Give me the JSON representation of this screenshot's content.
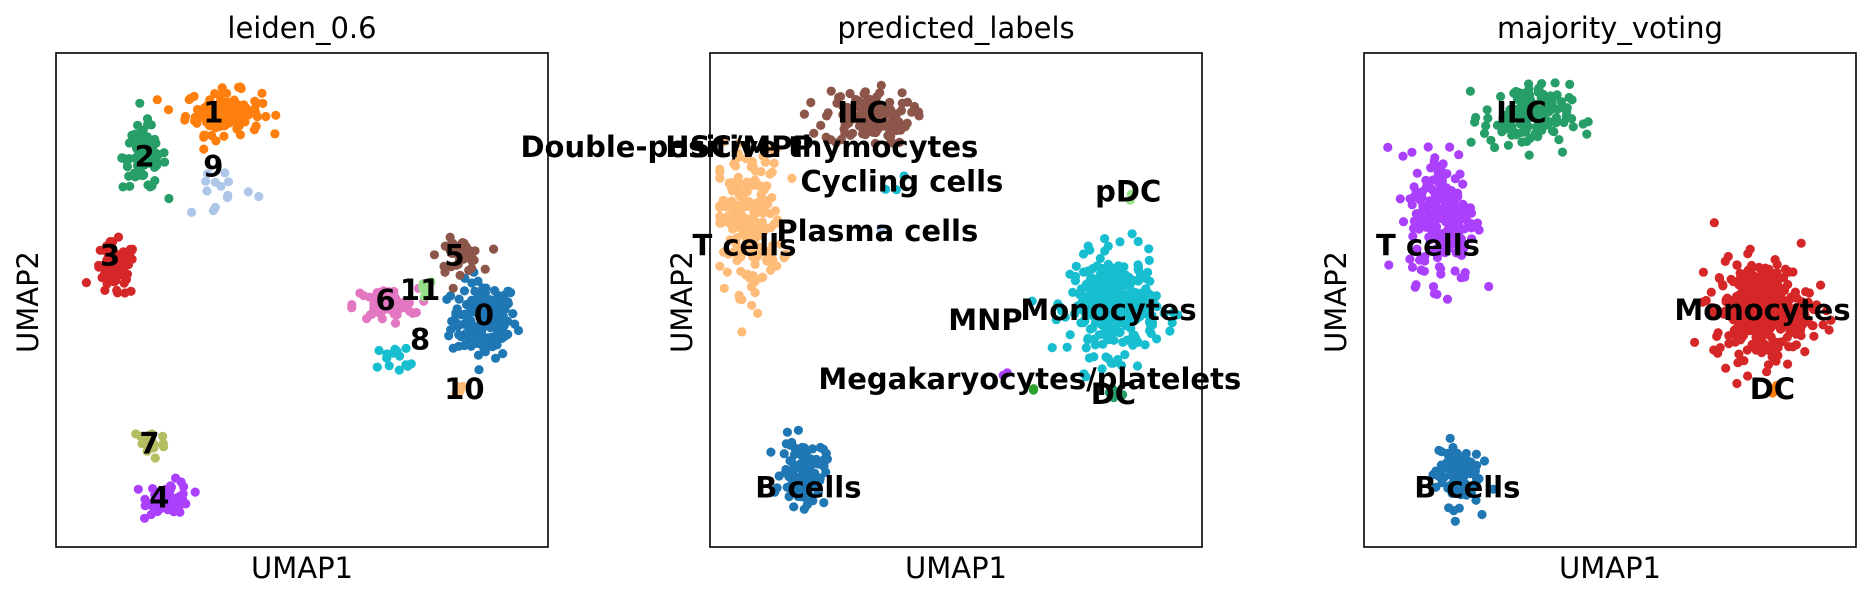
{
  "chart_data": [
    {
      "type": "scatter",
      "title": "leiden_0.6",
      "xlabel": "UMAP1",
      "ylabel": "UMAP2",
      "xlim": [
        0,
        100
      ],
      "ylim": [
        0,
        100
      ],
      "grid": false,
      "legend": "on data",
      "clusters": [
        {
          "label": "0",
          "color": "#1f77b4",
          "label_at": [
            87,
            47
          ],
          "n": 170,
          "spread": [
            6,
            7
          ],
          "center": [
            87,
            46
          ]
        },
        {
          "label": "1",
          "color": "#ff7f0e",
          "label_at": [
            32,
            88
          ],
          "n": 120,
          "spread": [
            7,
            4
          ],
          "center": [
            34,
            88
          ]
        },
        {
          "label": "2",
          "color": "#279e68",
          "label_at": [
            18,
            79
          ],
          "n": 80,
          "spread": [
            4,
            6
          ],
          "center": [
            18,
            79
          ]
        },
        {
          "label": "3",
          "color": "#d62728",
          "label_at": [
            11,
            59
          ],
          "n": 70,
          "spread": [
            4,
            5
          ],
          "center": [
            12,
            56
          ]
        },
        {
          "label": "4",
          "color": "#aa40fc",
          "label_at": [
            21,
            10
          ],
          "n": 60,
          "spread": [
            4,
            3
          ],
          "center": [
            23,
            10
          ]
        },
        {
          "label": "5",
          "color": "#8c564b",
          "label_at": [
            81,
            59
          ],
          "n": 45,
          "spread": [
            4,
            3
          ],
          "center": [
            82,
            59
          ]
        },
        {
          "label": "6",
          "color": "#e377c2",
          "label_at": [
            67,
            50
          ],
          "n": 55,
          "spread": [
            6,
            3
          ],
          "center": [
            67,
            49
          ]
        },
        {
          "label": "7",
          "color": "#b5bd61",
          "label_at": [
            19,
            21
          ],
          "n": 25,
          "spread": [
            3,
            3
          ],
          "center": [
            19,
            21
          ]
        },
        {
          "label": "8",
          "color": "#17becf",
          "label_at": [
            74,
            42
          ],
          "n": 14,
          "spread": [
            5,
            3
          ],
          "center": [
            70,
            38
          ]
        },
        {
          "label": "9",
          "color": "#aec7e8",
          "label_at": [
            32,
            77
          ],
          "n": 14,
          "spread": [
            7,
            6
          ],
          "center": [
            33,
            73
          ]
        },
        {
          "label": "10",
          "color": "#ffbb78",
          "label_at": [
            83,
            32
          ],
          "n": 4,
          "spread": [
            1,
            1
          ],
          "center": [
            82,
            32
          ]
        },
        {
          "label": "11",
          "color": "#98df8a",
          "label_at": [
            74,
            52
          ],
          "n": 8,
          "spread": [
            1.5,
            1.5
          ],
          "center": [
            75,
            53
          ]
        }
      ]
    },
    {
      "type": "scatter",
      "title": "predicted_labels",
      "xlabel": "UMAP1",
      "ylabel": "UMAP2",
      "xlim": [
        0,
        100
      ],
      "ylim": [
        0,
        100
      ],
      "grid": false,
      "legend": "on data",
      "clusters": [
        {
          "label": "ILC",
          "color": "#8c564b",
          "label_at": [
            31,
            88
          ],
          "n": 130,
          "spread": [
            8,
            5
          ],
          "center": [
            32,
            87
          ]
        },
        {
          "label": "Double-positive thymocytes",
          "color": "#ff7f0e",
          "label_at": [
            8,
            81
          ],
          "n": 0,
          "spread": [
            1,
            1
          ],
          "center": [
            20,
            80
          ]
        },
        {
          "label": "HSC/MPP",
          "color": "#e377c2",
          "label_at": [
            6,
            81
          ],
          "n": 0,
          "spread": [
            1,
            1
          ],
          "center": [
            12,
            81
          ]
        },
        {
          "label": "Cycling cells",
          "color": "#17becf",
          "label_at": [
            39,
            74
          ],
          "n": 3,
          "spread": [
            2,
            2
          ],
          "center": [
            37,
            74
          ]
        },
        {
          "label": "pDC",
          "color": "#98df8a",
          "label_at": [
            85,
            72
          ],
          "n": 2,
          "spread": [
            1,
            1
          ],
          "center": [
            85,
            71
          ]
        },
        {
          "label": "Plasma cells",
          "color": "#aec7e8",
          "label_at": [
            34,
            64
          ],
          "n": 1,
          "spread": [
            1,
            1
          ],
          "center": [
            34,
            64
          ]
        },
        {
          "label": "T cells",
          "color": "#ffbb78",
          "label_at": [
            7,
            61
          ],
          "n": 210,
          "spread": [
            6,
            13
          ],
          "center": [
            8,
            66
          ]
        },
        {
          "label": "MNP",
          "color": "#aa40fc",
          "label_at": [
            56,
            46
          ],
          "n": 2,
          "spread": [
            1,
            1
          ],
          "center": [
            60,
            35
          ]
        },
        {
          "label": "Monocytes",
          "color": "#17becf",
          "label_at": [
            81,
            48
          ],
          "n": 330,
          "spread": [
            8,
            9
          ],
          "center": [
            82,
            49
          ]
        },
        {
          "label": "Megakaryocytes/platelets",
          "color": "#2ca02c",
          "label_at": [
            65,
            34
          ],
          "n": 2,
          "spread": [
            1,
            1
          ],
          "center": [
            66,
            32
          ]
        },
        {
          "label": "DC",
          "color": "#279e68",
          "label_at": [
            82,
            31
          ],
          "n": 6,
          "spread": [
            1.5,
            1.5
          ],
          "center": [
            82,
            31
          ]
        },
        {
          "label": "B cells",
          "color": "#1f77b4",
          "label_at": [
            20,
            12
          ],
          "n": 110,
          "spread": [
            4,
            6
          ],
          "center": [
            19,
            15
          ]
        }
      ]
    },
    {
      "type": "scatter",
      "title": "majority_voting",
      "xlabel": "UMAP1",
      "ylabel": "UMAP2",
      "xlim": [
        0,
        100
      ],
      "ylim": [
        0,
        100
      ],
      "grid": false,
      "legend": "on data",
      "clusters": [
        {
          "label": "ILC",
          "color": "#279e68",
          "label_at": [
            32,
            88
          ],
          "n": 140,
          "spread": [
            8,
            6
          ],
          "center": [
            33,
            87
          ]
        },
        {
          "label": "T cells",
          "color": "#aa40fc",
          "label_at": [
            13,
            61
          ],
          "n": 210,
          "spread": [
            6,
            12
          ],
          "center": [
            16,
            67
          ]
        },
        {
          "label": "Monocytes",
          "color": "#d62728",
          "label_at": [
            81,
            48
          ],
          "n": 340,
          "spread": [
            9,
            9
          ],
          "center": [
            81,
            48
          ]
        },
        {
          "label": "DC",
          "color": "#ff7f0e",
          "label_at": [
            83,
            32
          ],
          "n": 5,
          "spread": [
            1.5,
            1.5
          ],
          "center": [
            83,
            32
          ]
        },
        {
          "label": "B cells",
          "color": "#1f77b4",
          "label_at": [
            21,
            12
          ],
          "n": 110,
          "spread": [
            4,
            6
          ],
          "center": [
            19,
            15
          ]
        }
      ]
    }
  ]
}
